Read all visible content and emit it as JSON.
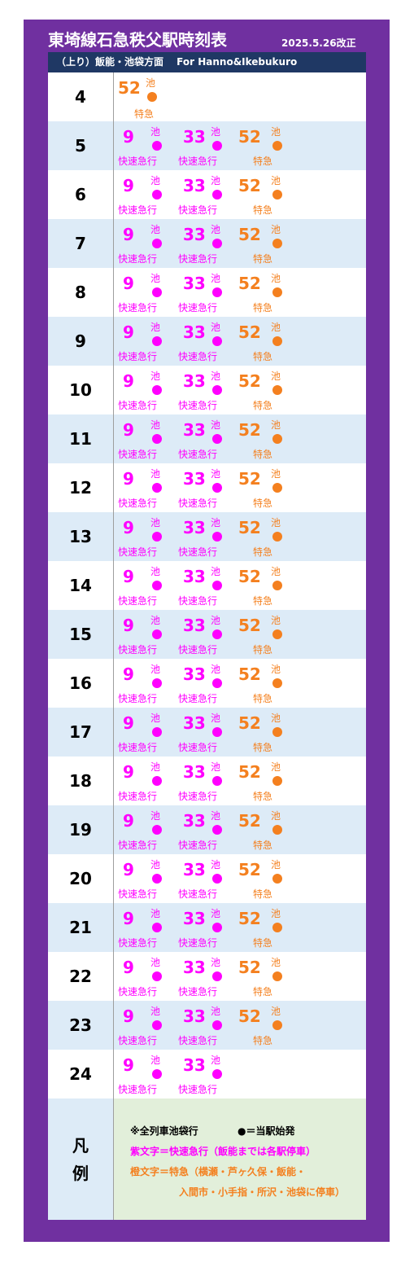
{
  "title": "東埼線石急秩父駅時刻表",
  "revised": "2025.5.26改正",
  "direction": "（上り）飯能・池袋方面　 For Hanno&Ikebukuro",
  "types": {
    "rapid": "快速急行",
    "limited": "特急"
  },
  "dest": "池",
  "colors": {
    "frame": "#7030a0",
    "header": "#1f3864",
    "rapid": "#ff00ff",
    "limited": "#f4801f",
    "row_alt": "#ddebf7",
    "legend_bg": "#e2efda"
  },
  "timetable": [
    {
      "hour": "4",
      "departures": [
        {
          "minute": "52",
          "type": "limited",
          "dest": "池",
          "origin_mark": true
        }
      ]
    },
    {
      "hour": "5",
      "departures": [
        {
          "minute": "9",
          "type": "rapid"
        },
        {
          "minute": "33",
          "type": "rapid"
        },
        {
          "minute": "52",
          "type": "limited"
        }
      ]
    },
    {
      "hour": "6",
      "departures": [
        {
          "minute": "9",
          "type": "rapid"
        },
        {
          "minute": "33",
          "type": "rapid"
        },
        {
          "minute": "52",
          "type": "limited"
        }
      ]
    },
    {
      "hour": "7",
      "departures": [
        {
          "minute": "9",
          "type": "rapid"
        },
        {
          "minute": "33",
          "type": "rapid"
        },
        {
          "minute": "52",
          "type": "limited"
        }
      ]
    },
    {
      "hour": "8",
      "departures": [
        {
          "minute": "9",
          "type": "rapid"
        },
        {
          "minute": "33",
          "type": "rapid"
        },
        {
          "minute": "52",
          "type": "limited"
        }
      ]
    },
    {
      "hour": "9",
      "departures": [
        {
          "minute": "9",
          "type": "rapid"
        },
        {
          "minute": "33",
          "type": "rapid"
        },
        {
          "minute": "52",
          "type": "limited"
        }
      ]
    },
    {
      "hour": "10",
      "departures": [
        {
          "minute": "9",
          "type": "rapid"
        },
        {
          "minute": "33",
          "type": "rapid"
        },
        {
          "minute": "52",
          "type": "limited"
        }
      ]
    },
    {
      "hour": "11",
      "departures": [
        {
          "minute": "9",
          "type": "rapid"
        },
        {
          "minute": "33",
          "type": "rapid"
        },
        {
          "minute": "52",
          "type": "limited"
        }
      ]
    },
    {
      "hour": "12",
      "departures": [
        {
          "minute": "9",
          "type": "rapid"
        },
        {
          "minute": "33",
          "type": "rapid"
        },
        {
          "minute": "52",
          "type": "limited"
        }
      ]
    },
    {
      "hour": "13",
      "departures": [
        {
          "minute": "9",
          "type": "rapid"
        },
        {
          "minute": "33",
          "type": "rapid"
        },
        {
          "minute": "52",
          "type": "limited"
        }
      ]
    },
    {
      "hour": "14",
      "departures": [
        {
          "minute": "9",
          "type": "rapid"
        },
        {
          "minute": "33",
          "type": "rapid"
        },
        {
          "minute": "52",
          "type": "limited"
        }
      ]
    },
    {
      "hour": "15",
      "departures": [
        {
          "minute": "9",
          "type": "rapid"
        },
        {
          "minute": "33",
          "type": "rapid"
        },
        {
          "minute": "52",
          "type": "limited"
        }
      ]
    },
    {
      "hour": "16",
      "departures": [
        {
          "minute": "9",
          "type": "rapid"
        },
        {
          "minute": "33",
          "type": "rapid"
        },
        {
          "minute": "52",
          "type": "limited"
        }
      ]
    },
    {
      "hour": "17",
      "departures": [
        {
          "minute": "9",
          "type": "rapid"
        },
        {
          "minute": "33",
          "type": "rapid"
        },
        {
          "minute": "52",
          "type": "limited"
        }
      ]
    },
    {
      "hour": "18",
      "departures": [
        {
          "minute": "9",
          "type": "rapid"
        },
        {
          "minute": "33",
          "type": "rapid"
        },
        {
          "minute": "52",
          "type": "limited"
        }
      ]
    },
    {
      "hour": "19",
      "departures": [
        {
          "minute": "9",
          "type": "rapid"
        },
        {
          "minute": "33",
          "type": "rapid"
        },
        {
          "minute": "52",
          "type": "limited"
        }
      ]
    },
    {
      "hour": "20",
      "departures": [
        {
          "minute": "9",
          "type": "rapid"
        },
        {
          "minute": "33",
          "type": "rapid"
        },
        {
          "minute": "52",
          "type": "limited"
        }
      ]
    },
    {
      "hour": "21",
      "departures": [
        {
          "minute": "9",
          "type": "rapid"
        },
        {
          "minute": "33",
          "type": "rapid"
        },
        {
          "minute": "52",
          "type": "limited"
        }
      ]
    },
    {
      "hour": "22",
      "departures": [
        {
          "minute": "9",
          "type": "rapid"
        },
        {
          "minute": "33",
          "type": "rapid"
        },
        {
          "minute": "52",
          "type": "limited"
        }
      ]
    },
    {
      "hour": "23",
      "departures": [
        {
          "minute": "9",
          "type": "rapid"
        },
        {
          "minute": "33",
          "type": "rapid"
        },
        {
          "minute": "52",
          "type": "limited"
        }
      ]
    },
    {
      "hour": "24",
      "departures": [
        {
          "minute": "9",
          "type": "rapid"
        },
        {
          "minute": "33",
          "type": "rapid"
        }
      ]
    }
  ],
  "legend": {
    "label_1": "凡",
    "label_2": "例",
    "all_trains": "※全列車池袋行",
    "origin": "●＝当駅始発",
    "rapid_desc": "紫文字＝快速急行（飯能までは各駅停車）",
    "limited_desc_1": "橙文字＝特急（横瀬・芦ヶ久保・飯能・",
    "limited_desc_2": "入間市・小手指・所沢・池袋に停車）"
  }
}
